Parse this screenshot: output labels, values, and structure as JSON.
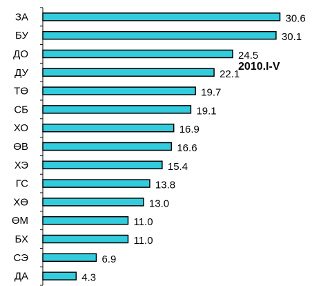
{
  "chart_data": {
    "type": "bar",
    "orientation": "horizontal",
    "title": "",
    "xlabel": "",
    "ylabel": "",
    "annotation": "2010.I-V",
    "categories": [
      "ЗА",
      "БУ",
      "ДО",
      "ДУ",
      "ТӨ",
      "СБ",
      "ХО",
      "ӨВ",
      "ХЭ",
      "ГС",
      "ХӨ",
      "ӨМ",
      "БХ",
      "СЭ",
      "ДА"
    ],
    "values": [
      30.6,
      30.1,
      24.5,
      22.1,
      19.7,
      19.1,
      16.9,
      16.6,
      15.4,
      13.8,
      13.0,
      11.0,
      11.0,
      6.9,
      4.3
    ],
    "value_labels": [
      "30.6",
      "30.1",
      "24.5",
      "22.1",
      "19.7",
      "19.1",
      "16.9",
      "16.6",
      "15.4",
      "13.8",
      "13.0",
      "11.0",
      "11.0",
      "6.9",
      "4.3"
    ],
    "xlim": [
      0,
      31
    ],
    "grid": false,
    "legend": "none",
    "colors": {
      "bar_fill": "#33ccdd",
      "bar_stroke": "#000000",
      "axis": "#000000"
    }
  }
}
